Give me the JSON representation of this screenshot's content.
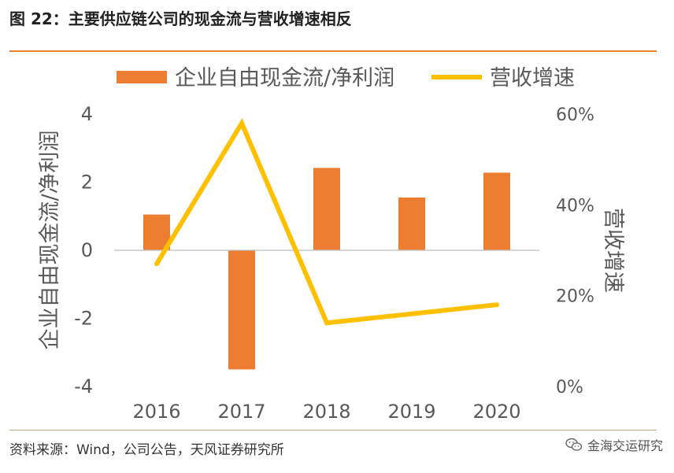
{
  "figure": {
    "title": "图 22：主要供应链公司的现金流与营收增速相反",
    "source": "资料来源：Wind，公司公告，天风证券研究所",
    "watermark": "金海交运研究",
    "watermark_icon": "wechat-icon"
  },
  "chart_data": {
    "type": "bar",
    "title": "",
    "categories": [
      "2016",
      "2017",
      "2018",
      "2019",
      "2020"
    ],
    "series": [
      {
        "name": "企业自由现金流/净利润",
        "type": "bar",
        "axis": "left",
        "color": "#ed7d31",
        "values": [
          1.05,
          -3.5,
          2.42,
          1.55,
          2.28
        ]
      },
      {
        "name": "营收增速",
        "type": "line",
        "axis": "right",
        "color": "#ffc000",
        "values": [
          27,
          58,
          14,
          16,
          18
        ]
      }
    ],
    "ylabel": "企业自由现金流/净利润",
    "ylim": [
      -4,
      4
    ],
    "yticks": [
      "4",
      "2",
      "0",
      "-2",
      "-4"
    ],
    "yticks_values": [
      4,
      2,
      0,
      -2,
      -4
    ],
    "y2label": "营收增速",
    "y2lim": [
      0,
      60
    ],
    "y2ticks": [
      "60%",
      "40%",
      "20%",
      "0%"
    ],
    "y2ticks_values": [
      60,
      40,
      20,
      0
    ],
    "legend_position": "top",
    "grid": false
  }
}
